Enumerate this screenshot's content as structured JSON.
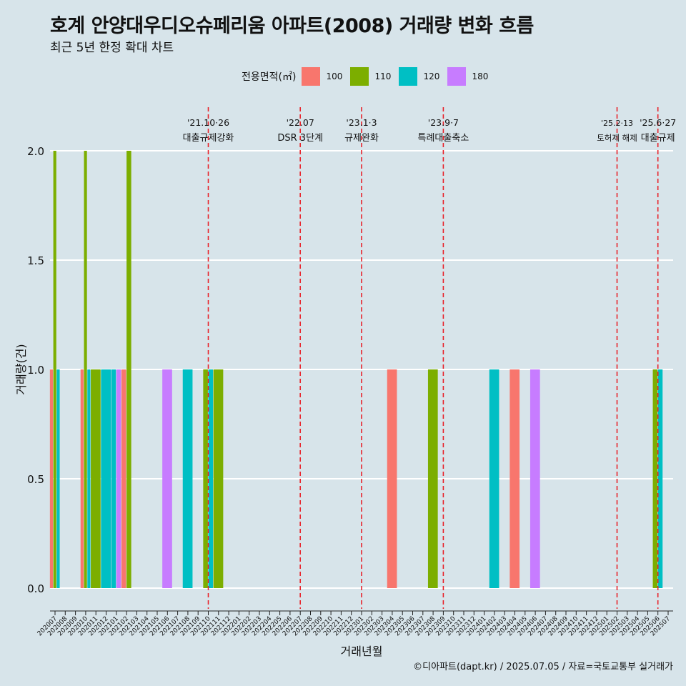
{
  "colors": {
    "background": "#d7e4ea",
    "grid": "#ffffff",
    "event_line": "#e8232b"
  },
  "chart_data": {
    "type": "bar",
    "title": "호계 안양대우디오슈페리움 아파트(2008) 거래량 변화 흐름",
    "subtitle": "최근 5년 한정 확대 차트",
    "xlabel": "거래년월",
    "ylabel": "거래량(건)",
    "ylim": [
      0,
      2
    ],
    "yticks": [
      "0.0",
      "0.5",
      "1.0",
      "1.5",
      "2.0"
    ],
    "grid": true,
    "legend": {
      "title": "전용면적(㎡)",
      "position": "top"
    },
    "categories": [
      "202007",
      "202008",
      "202009",
      "202010",
      "202011",
      "202012",
      "202101",
      "202102",
      "202103",
      "202104",
      "202105",
      "202106",
      "202107",
      "202108",
      "202109",
      "202110",
      "202111",
      "202112",
      "202201",
      "202202",
      "202203",
      "202204",
      "202205",
      "202206",
      "202207",
      "202208",
      "202209",
      "202210",
      "202211",
      "202212",
      "202301",
      "202302",
      "202303",
      "202304",
      "202305",
      "202306",
      "202307",
      "202308",
      "202309",
      "202310",
      "202311",
      "202312",
      "202401",
      "202402",
      "202403",
      "202404",
      "202405",
      "202406",
      "202407",
      "202408",
      "202409",
      "202410",
      "202411",
      "202412",
      "202501",
      "202502",
      "202503",
      "202504",
      "202505",
      "202506",
      "202507"
    ],
    "series": [
      {
        "name": "100",
        "color": "#f8766d",
        "values": [
          1,
          0,
          0,
          1,
          0,
          0,
          0,
          1,
          0,
          0,
          0,
          0,
          0,
          0,
          0,
          0,
          0,
          0,
          0,
          0,
          0,
          0,
          0,
          0,
          0,
          0,
          0,
          0,
          0,
          0,
          0,
          0,
          0,
          1,
          0,
          0,
          0,
          0,
          0,
          0,
          0,
          0,
          0,
          0,
          0,
          1,
          0,
          0,
          0,
          0,
          0,
          0,
          0,
          0,
          0,
          0,
          0,
          0,
          0,
          0,
          0
        ]
      },
      {
        "name": "110",
        "color": "#7cae00",
        "values": [
          2,
          0,
          0,
          2,
          1,
          0,
          0,
          2,
          0,
          0,
          0,
          0,
          0,
          0,
          0,
          1,
          1,
          0,
          0,
          0,
          0,
          0,
          0,
          0,
          0,
          0,
          0,
          0,
          0,
          0,
          0,
          0,
          0,
          0,
          0,
          0,
          0,
          1,
          0,
          0,
          0,
          0,
          0,
          0,
          0,
          0,
          0,
          0,
          0,
          0,
          0,
          0,
          0,
          0,
          0,
          0,
          0,
          0,
          0,
          1,
          0
        ]
      },
      {
        "name": "120",
        "color": "#00bfc4",
        "values": [
          1,
          0,
          0,
          1,
          0,
          1,
          1,
          0,
          0,
          0,
          0,
          0,
          0,
          1,
          0,
          1,
          0,
          0,
          0,
          0,
          0,
          0,
          0,
          0,
          0,
          0,
          0,
          0,
          0,
          0,
          0,
          0,
          0,
          0,
          0,
          0,
          0,
          0,
          0,
          0,
          0,
          0,
          0,
          1,
          0,
          0,
          0,
          0,
          0,
          0,
          0,
          0,
          0,
          0,
          0,
          0,
          0,
          0,
          0,
          1,
          0
        ]
      },
      {
        "name": "180",
        "color": "#c77cff",
        "values": [
          0,
          0,
          0,
          0,
          0,
          0,
          1,
          0,
          0,
          0,
          0,
          1,
          0,
          0,
          0,
          0,
          0,
          0,
          0,
          0,
          0,
          0,
          0,
          0,
          0,
          0,
          0,
          0,
          0,
          0,
          0,
          0,
          0,
          0,
          0,
          0,
          0,
          0,
          0,
          0,
          0,
          0,
          0,
          0,
          0,
          0,
          0,
          1,
          0,
          0,
          0,
          0,
          0,
          0,
          0,
          0,
          0,
          0,
          0,
          0,
          0
        ]
      }
    ],
    "annotations": [
      {
        "x": "202110",
        "date": "'21.10·26",
        "label": "대출규제강화"
      },
      {
        "x": "202207",
        "date": "'22.07",
        "label": "DSR 3단계"
      },
      {
        "x": "202301",
        "date": "'23.1·3",
        "label": "규제완화"
      },
      {
        "x": "202309",
        "date": "'23.9·7",
        "label": "특례대출축소"
      },
      {
        "x": "202502",
        "date": "'25.2·13",
        "label": "토허제 해제"
      },
      {
        "x": "202506",
        "date": "'25.6·27",
        "label": "대출규제"
      }
    ]
  },
  "caption": "©디아파트(dapt.kr) / 2025.07.05 / 자료=국토교통부 실거래가"
}
